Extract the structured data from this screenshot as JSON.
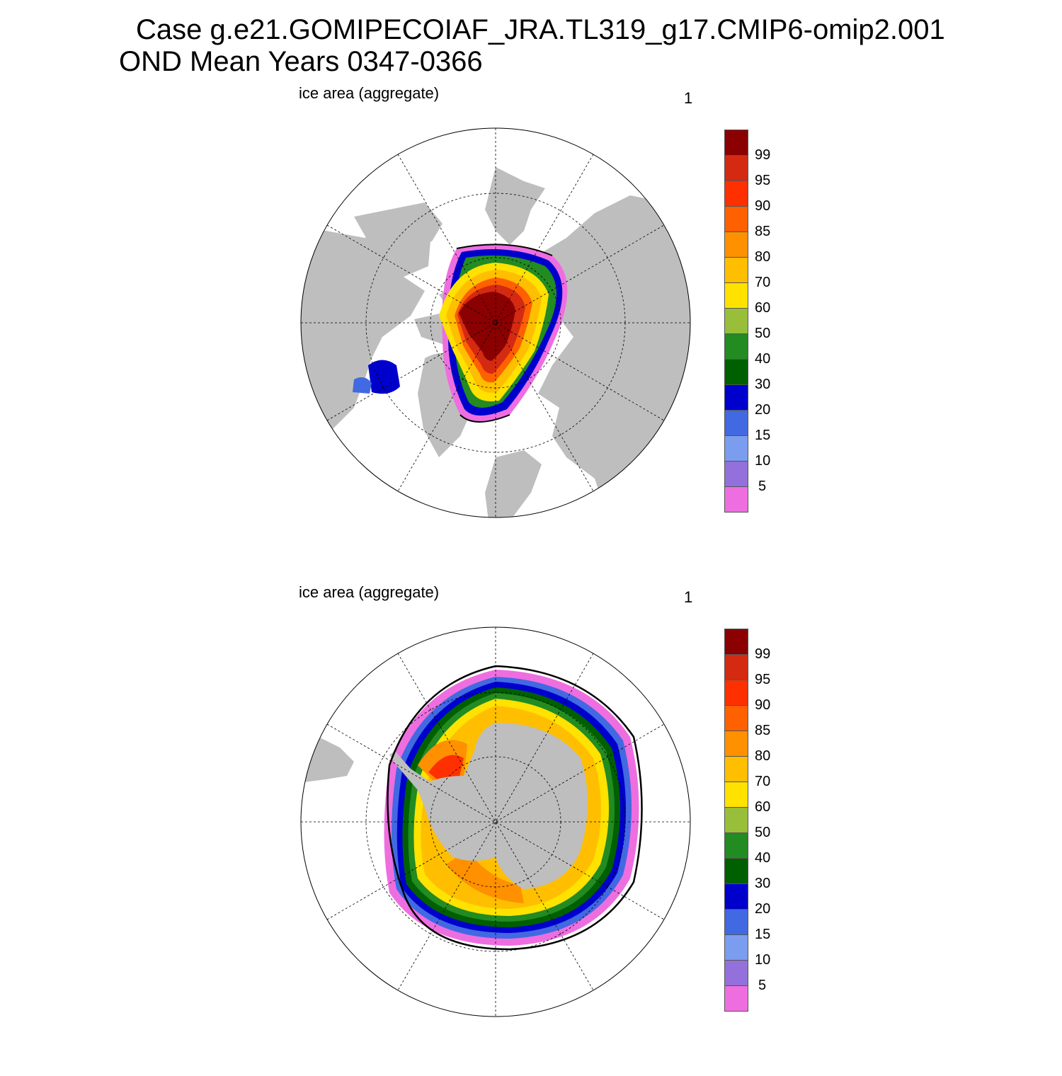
{
  "title": {
    "line1": "Case g.e21.GOMIPECOIAF_JRA.TL319_g17.CMIP6-omip2.001",
    "line2": "OND Mean   Years 0347-0366"
  },
  "panels": [
    {
      "variable": "ice area  (aggregate)",
      "units": "1",
      "hemisphere": "north"
    },
    {
      "variable": "ice area  (aggregate)",
      "units": "1",
      "hemisphere": "south"
    }
  ],
  "colorbar": {
    "labels": [
      "99",
      "95",
      "90",
      "85",
      "80",
      "70",
      "60",
      "50",
      "40",
      "30",
      "20",
      "15",
      "10",
      "5"
    ],
    "colors": [
      "#8B0000",
      "#D42A12",
      "#FF3000",
      "#FF6000",
      "#FF9000",
      "#FFBF00",
      "#FFE200",
      "#98BE3A",
      "#228B22",
      "#006000",
      "#0000CD",
      "#4169E1",
      "#7B9DF0",
      "#9370DB",
      "#EE6EE0"
    ]
  },
  "map_style": {
    "land_color": "#BEBEBE",
    "ocean_color": "#FFFFFF",
    "grid_line": "dashed",
    "observed_edge_color": "#000000"
  }
}
